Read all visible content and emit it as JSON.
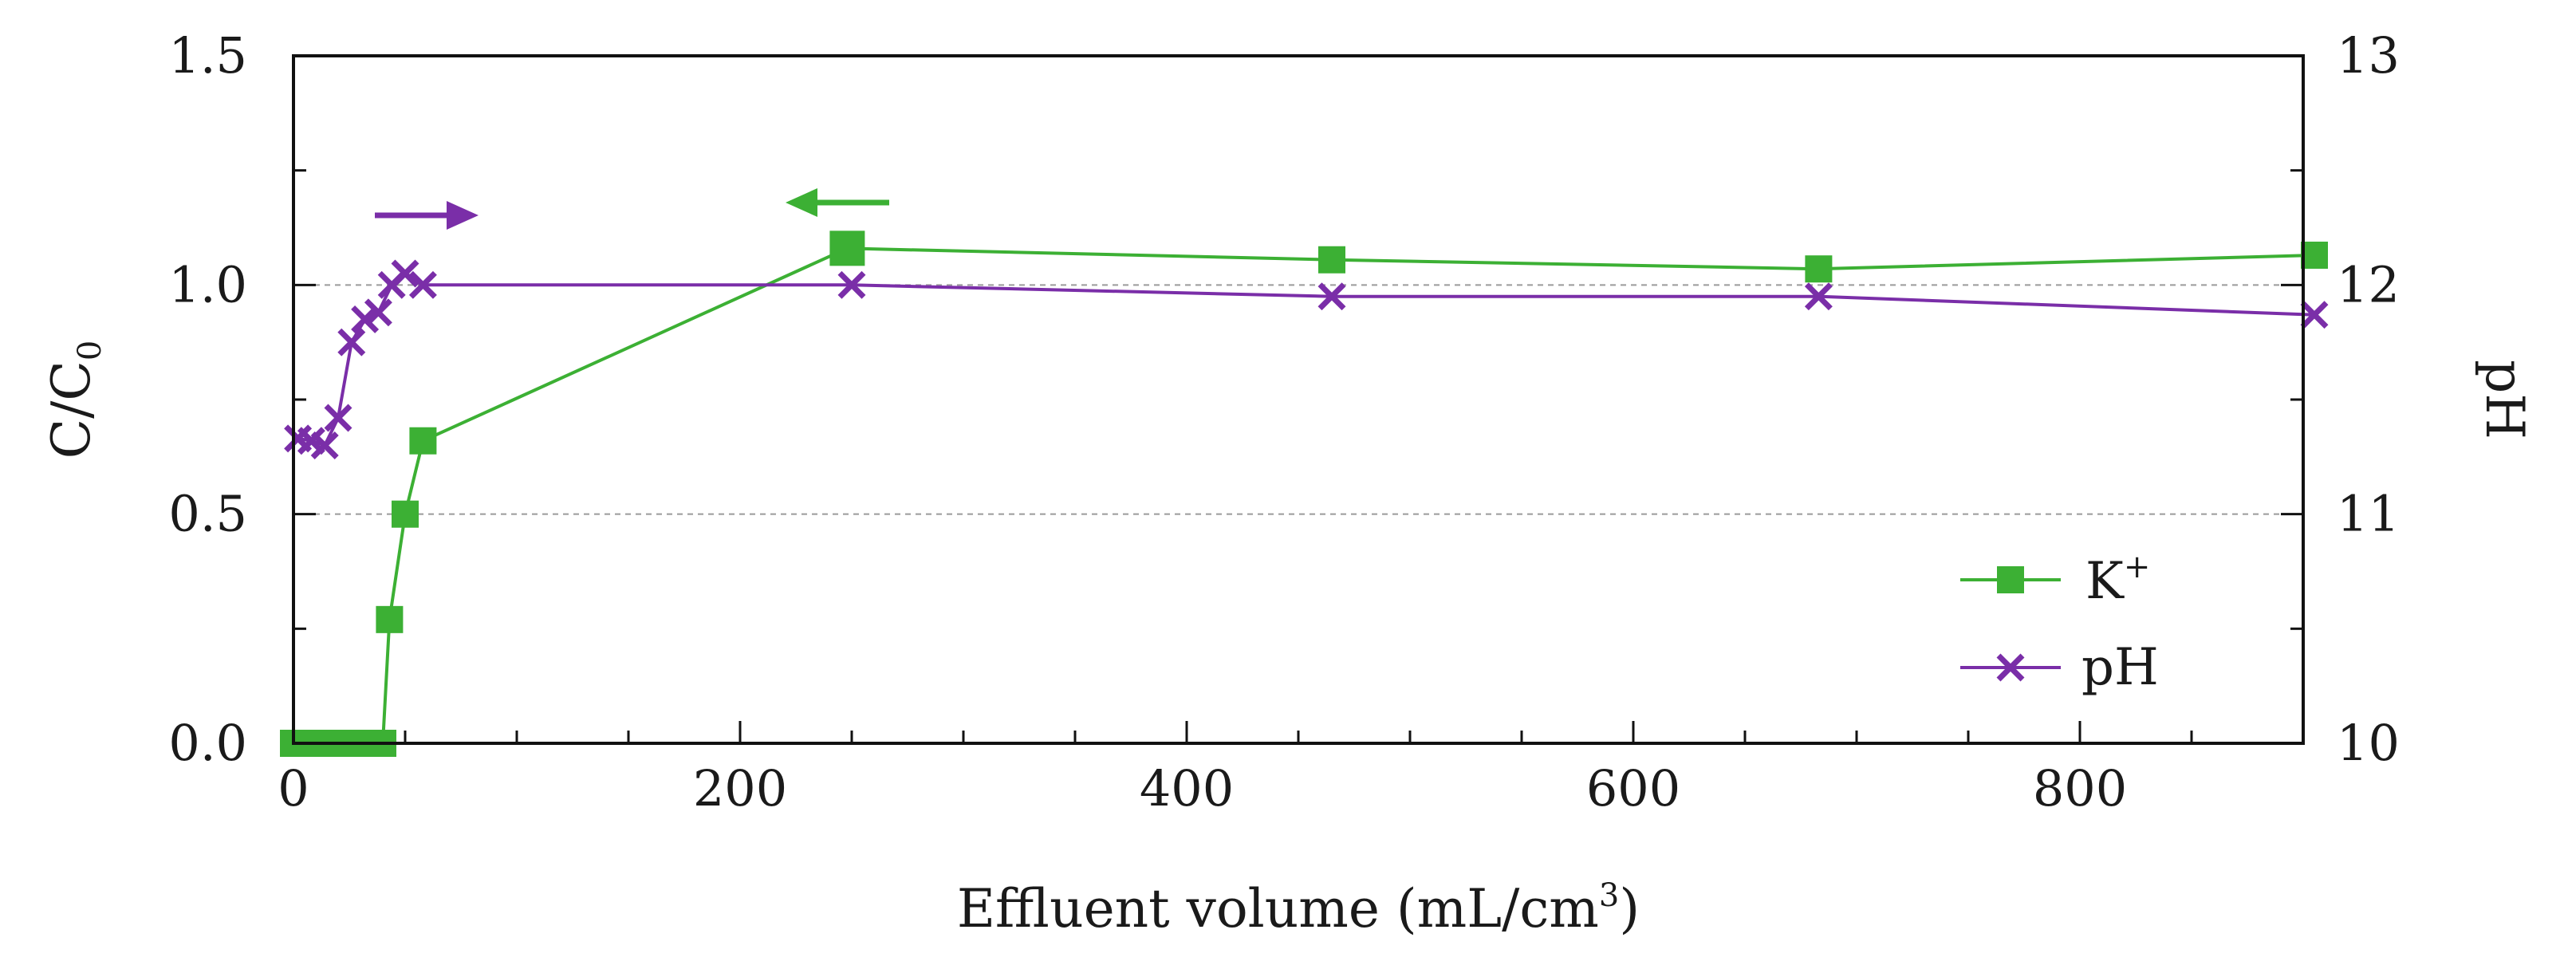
{
  "chart_data": {
    "type": "line",
    "title": "",
    "xlabel": "Effluent volume (mL/cm",
    "xlabel_superscript": "3",
    "xlabel_suffix": ")",
    "ylabel_left": "C/C",
    "ylabel_left_subscript": "0",
    "ylabel_right": "pH",
    "xlim": [
      0,
      900
    ],
    "ylim_left": [
      0,
      1.5
    ],
    "ylim_right": [
      10,
      13
    ],
    "x_ticks": [
      0,
      200,
      400,
      600,
      800
    ],
    "x_tick_labels": [
      "0",
      "200",
      "400",
      "600",
      "800"
    ],
    "y_left_ticks": [
      0,
      0.5,
      1.0,
      1.5
    ],
    "y_left_tick_labels": [
      "0.0",
      "0.5",
      "1.0",
      "1.5"
    ],
    "y_right_ticks": [
      10,
      11,
      12,
      13
    ],
    "y_right_tick_labels": [
      "10",
      "11",
      "12",
      "13"
    ],
    "gridlines_y_left": [
      0.5,
      1.0
    ],
    "series": [
      {
        "name": "K+",
        "legend_label": "K",
        "legend_superscript": "+",
        "axis": "left",
        "color": "#3cb034",
        "marker": "square",
        "x": [
          0,
          5,
          10,
          15,
          20,
          25,
          30,
          35,
          40,
          43,
          50,
          58,
          248,
          465,
          683,
          905
        ],
        "y": [
          0,
          0,
          0,
          0,
          0,
          0,
          0,
          0,
          0,
          0.27,
          0.5,
          0.66,
          1.08,
          1.055,
          1.035,
          1.065
        ]
      },
      {
        "name": "pH",
        "legend_label": "pH",
        "axis": "right",
        "color": "#7a2ea8",
        "marker": "x",
        "x": [
          2,
          8,
          14,
          20,
          26,
          32,
          38,
          44,
          50,
          58,
          250,
          465,
          683,
          905
        ],
        "y": [
          11.33,
          11.32,
          11.3,
          11.42,
          11.75,
          11.85,
          11.88,
          12.0,
          12.05,
          12.0,
          12.0,
          11.95,
          11.95,
          11.87
        ]
      }
    ],
    "annotations": [
      {
        "type": "arrow",
        "direction": "right",
        "meaning": "pH series uses right axis",
        "color": "#7a2ea8"
      },
      {
        "type": "arrow",
        "direction": "left",
        "meaning": "K+ series uses left axis",
        "color": "#3cb034"
      }
    ],
    "legend_position": "bottom-right"
  }
}
